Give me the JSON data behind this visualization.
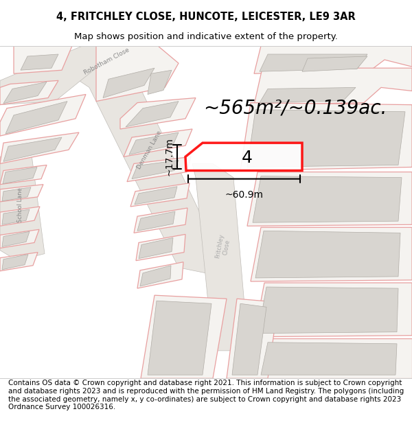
{
  "title_line1": "4, FRITCHLEY CLOSE, HUNCOTE, LEICESTER, LE9 3AR",
  "title_line2": "Map shows position and indicative extent of the property.",
  "footer_text": "Contains OS data © Crown copyright and database right 2021. This information is subject to Crown copyright and database rights 2023 and is reproduced with the permission of HM Land Registry. The polygons (including the associated geometry, namely x, y co-ordinates) are subject to Crown copyright and database rights 2023 Ordnance Survey 100026316.",
  "area_text": "~565m²/~0.139ac.",
  "property_number": "4",
  "dim_width": "~60.9m",
  "dim_height": "~17.7m",
  "map_bg": "#ffffff",
  "building_fill": "#d8d5d0",
  "parcel_edge": "#e8a0a0",
  "road_label_color": "#888888",
  "highlight_stroke": "#ff0000",
  "title_fontsize": 10.5,
  "subtitle_fontsize": 9.5,
  "footer_fontsize": 7.5,
  "area_fontsize": 20,
  "property_number_fontsize": 18,
  "dim_fontsize": 10
}
